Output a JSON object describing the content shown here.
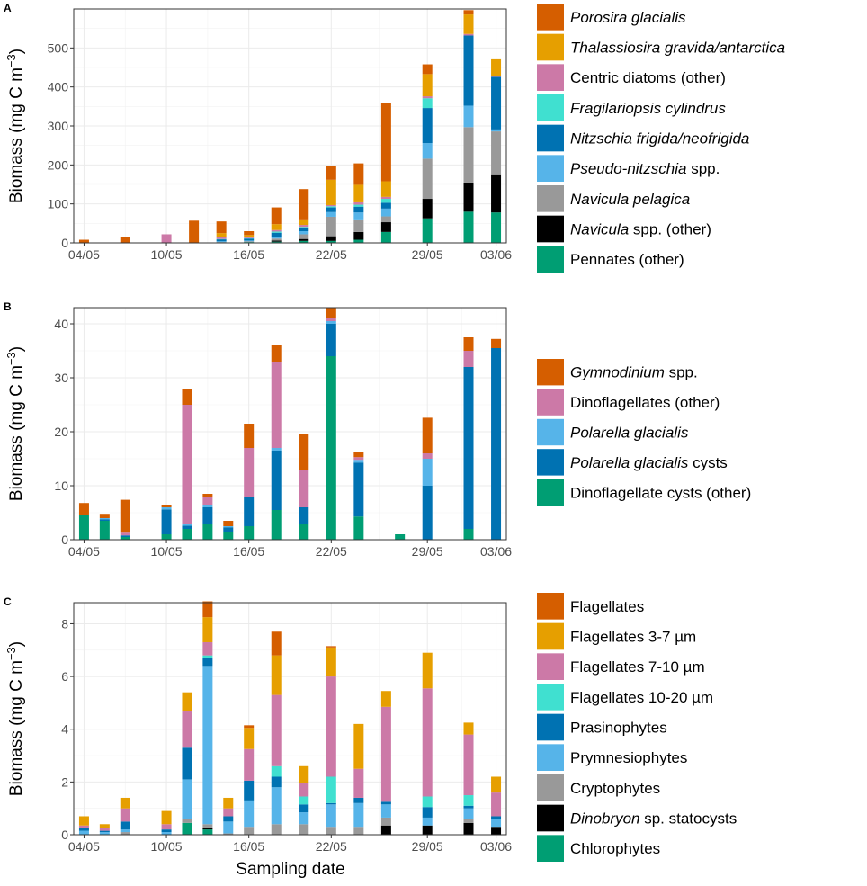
{
  "xlabel": "Sampling date",
  "x_ticks": [
    "04/05",
    "10/05",
    "16/05",
    "22/05",
    "29/05",
    "03/06"
  ],
  "colors": {
    "orange": "#D55E00",
    "gold": "#E69F00",
    "pink": "#CC79A7",
    "turquoise": "#40E0D0",
    "blue": "#0072B2",
    "skyblue": "#56B4E9",
    "grey": "#999999",
    "black": "#000000",
    "green": "#009E73"
  },
  "chart_data": [
    {
      "type": "bar",
      "stacked": true,
      "panel_label": "A",
      "ylabel": "Biomass (mg C m^-3)",
      "ylim": [
        0,
        600
      ],
      "y_ticks": [
        0,
        100,
        200,
        300,
        400,
        500
      ],
      "dates": [
        0,
        3,
        6,
        8,
        10,
        12,
        14,
        16,
        18,
        20,
        22,
        25,
        28,
        30
      ],
      "series": [
        {
          "name": "Pennates (other)",
          "color_key": "green",
          "values": [
            0,
            0,
            0,
            0,
            1,
            2,
            3,
            5,
            5,
            8,
            28,
            63,
            80,
            78
          ]
        },
        {
          "name": "Navicula spp. (other)",
          "color_key": "black",
          "values": [
            0,
            0,
            0,
            0,
            0,
            0,
            3,
            5,
            12,
            20,
            25,
            50,
            75,
            98
          ]
        },
        {
          "name": "Navicula pelagica",
          "color_key": "grey",
          "values": [
            0,
            0,
            0,
            0,
            1,
            2,
            5,
            12,
            50,
            30,
            15,
            103,
            142,
            110
          ]
        },
        {
          "name": "Pseudo-nitzschia spp.",
          "color_key": "skyblue",
          "values": [
            0,
            0,
            0,
            0,
            2,
            2,
            5,
            8,
            12,
            20,
            20,
            40,
            55,
            5
          ]
        },
        {
          "name": "Nitzschia frigida/neofrigida",
          "color_key": "blue",
          "values": [
            0,
            0,
            0,
            0,
            5,
            5,
            10,
            8,
            12,
            15,
            15,
            90,
            180,
            135
          ]
        },
        {
          "name": "Fragilariopsis cylindrus",
          "color_key": "turquoise",
          "values": [
            0,
            0,
            0,
            0,
            1,
            1,
            3,
            3,
            3,
            5,
            10,
            25,
            0,
            0
          ]
        },
        {
          "name": "Centric diatoms (other)",
          "color_key": "pink",
          "values": [
            0,
            0,
            22,
            0,
            5,
            3,
            4,
            5,
            3,
            6,
            5,
            5,
            4,
            3
          ]
        },
        {
          "name": "Thalassiosira gravida/antarctica",
          "color_key": "gold",
          "values": [
            0,
            0,
            0,
            0,
            10,
            5,
            15,
            12,
            65,
            45,
            40,
            57,
            50,
            42
          ]
        },
        {
          "name": "Porosira glacialis",
          "color_key": "orange",
          "values": [
            8,
            15,
            0,
            57,
            30,
            10,
            43,
            80,
            35,
            55,
            200,
            25,
            11,
            0
          ]
        }
      ]
    },
    {
      "type": "bar",
      "stacked": true,
      "panel_label": "B",
      "ylabel": "Biomass (mg C m^-3)",
      "ylim": [
        0,
        43
      ],
      "y_ticks": [
        0,
        10,
        20,
        30,
        40
      ],
      "dates": [
        0,
        1.5,
        3,
        6,
        7.5,
        9,
        10.5,
        12,
        14,
        16,
        18,
        20,
        23,
        25,
        28,
        30
      ],
      "series": [
        {
          "name": "Dinoflagellate cysts (other)",
          "color_key": "green",
          "values": [
            4.5,
            3.5,
            0.5,
            1,
            2,
            3,
            1.5,
            2.5,
            5.5,
            3,
            34,
            4.3,
            1,
            0,
            2,
            0
          ]
        },
        {
          "name": "Polarella glacialis cysts",
          "color_key": "blue",
          "values": [
            0,
            0.3,
            0.3,
            4.6,
            0.6,
            3,
            0.8,
            5.5,
            11,
            3,
            6,
            10,
            0,
            10,
            30,
            35.5
          ]
        },
        {
          "name": "Polarella glacialis",
          "color_key": "skyblue",
          "values": [
            0,
            0.2,
            0,
            0.4,
            0.4,
            0.5,
            0.2,
            0,
            0.5,
            0,
            0.5,
            0.5,
            0,
            5,
            0,
            0
          ]
        },
        {
          "name": "Dinoflagellates (other)",
          "color_key": "pink",
          "values": [
            0,
            0,
            0.5,
            0,
            22,
            1.5,
            0,
            9,
            16,
            7,
            0.5,
            0.5,
            0,
            1,
            3,
            0
          ]
        },
        {
          "name": "Gymnodinium spp.",
          "color_key": "orange",
          "values": [
            2.3,
            0.8,
            6.1,
            0.5,
            3,
            0.5,
            1,
            4.5,
            3,
            6.5,
            2,
            1,
            0,
            6.6,
            2.5,
            1.7
          ]
        }
      ]
    },
    {
      "type": "bar",
      "stacked": true,
      "panel_label": "C",
      "ylabel": "Biomass (mg C m^-3)",
      "ylim": [
        0,
        8.8
      ],
      "y_ticks": [
        0,
        2,
        4,
        6,
        8
      ],
      "dates": [
        0,
        1.5,
        3,
        6,
        7.5,
        9,
        10.5,
        12,
        14,
        16,
        18,
        20,
        22,
        25,
        28,
        30
      ],
      "series": [
        {
          "name": "Chlorophytes",
          "color_key": "green",
          "values": [
            0,
            0,
            0,
            0,
            0.45,
            0.2,
            0,
            0,
            0,
            0,
            0,
            0,
            0,
            0,
            0,
            0
          ]
        },
        {
          "name": "Dinobryon sp. statocysts",
          "color_key": "black",
          "values": [
            0,
            0,
            0,
            0,
            0,
            0.05,
            0,
            0,
            0,
            0,
            0,
            0,
            0.35,
            0.35,
            0.45,
            0.3
          ]
        },
        {
          "name": "Cryptophytes",
          "color_key": "grey",
          "values": [
            0,
            0,
            0.1,
            0,
            0.15,
            0.15,
            0.05,
            0.3,
            0.4,
            0.4,
            0.3,
            0.3,
            0.3,
            0,
            0.15,
            0
          ]
        },
        {
          "name": "Prymnesiophytes",
          "color_key": "skyblue",
          "values": [
            0.15,
            0.1,
            0.1,
            0.1,
            1.5,
            6,
            0.45,
            1,
            1.4,
            0.45,
            0.85,
            0.9,
            0.5,
            0.3,
            0.4,
            0.3
          ]
        },
        {
          "name": "Prasinophytes",
          "color_key": "blue",
          "values": [
            0.1,
            0.05,
            0.3,
            0.1,
            1.2,
            0.3,
            0.2,
            0.75,
            0.4,
            0.3,
            0.05,
            0.2,
            0.1,
            0.4,
            0.1,
            0.1
          ]
        },
        {
          "name": "Flagellates 10-20 µm",
          "color_key": "turquoise",
          "values": [
            0,
            0,
            0,
            0,
            0,
            0.1,
            0,
            0,
            0.4,
            0.3,
            1,
            0,
            0,
            0.4,
            0.4,
            0
          ]
        },
        {
          "name": "Flagellates 7-10 µm",
          "color_key": "pink",
          "values": [
            0.1,
            0.1,
            0.5,
            0.2,
            1.4,
            0.5,
            0.3,
            1.2,
            2.7,
            0.5,
            3.8,
            1.1,
            3.6,
            4.1,
            2.3,
            0.9
          ]
        },
        {
          "name": "Flagellates 3-7 µm",
          "color_key": "gold",
          "values": [
            0.35,
            0.15,
            0.4,
            0.5,
            0.7,
            0.95,
            0.4,
            0.8,
            1.5,
            0.65,
            1.1,
            1.7,
            0.6,
            1.35,
            0.45,
            0.6
          ]
        },
        {
          "name": "Flagellates",
          "color_key": "orange",
          "values": [
            0,
            0,
            0,
            0,
            0,
            0.6,
            0,
            0.1,
            0.9,
            0,
            0.05,
            0,
            0,
            0,
            0,
            0
          ]
        }
      ]
    }
  ],
  "legends": [
    [
      {
        "name": "Porosira glacialis",
        "italic": "Porosira glacialis",
        "plain": "",
        "color_key": "orange"
      },
      {
        "name": "Thalassiosira gravida/antarctica",
        "italic": "Thalassiosira gravida/antarctica",
        "plain": "",
        "color_key": "gold"
      },
      {
        "name": "Centric diatoms (other)",
        "italic": "",
        "plain": "Centric diatoms (other)",
        "color_key": "pink"
      },
      {
        "name": "Fragilariopsis cylindrus",
        "italic": "Fragilariopsis cylindrus",
        "plain": "",
        "color_key": "turquoise"
      },
      {
        "name": "Nitzschia frigida/neofrigida",
        "italic": "Nitzschia frigida/neofrigida",
        "plain": "",
        "color_key": "blue"
      },
      {
        "name": "Pseudo-nitzschia spp.",
        "italic": "Pseudo-nitzschia",
        "plain": " spp.",
        "color_key": "skyblue"
      },
      {
        "name": "Navicula pelagica",
        "italic": "Navicula pelagica",
        "plain": "",
        "color_key": "grey"
      },
      {
        "name": "Navicula spp. (other)",
        "italic": "Navicula",
        "plain": " spp. (other)",
        "color_key": "black"
      },
      {
        "name": "Pennates (other)",
        "italic": "",
        "plain": "Pennates (other)",
        "color_key": "green"
      }
    ],
    [
      {
        "name": "Gymnodinium spp.",
        "italic": "Gymnodinium",
        "plain": " spp.",
        "color_key": "orange"
      },
      {
        "name": "Dinoflagellates (other)",
        "italic": "",
        "plain": "Dinoflagellates (other)",
        "color_key": "pink"
      },
      {
        "name": "Polarella glacialis",
        "italic": "Polarella glacialis",
        "plain": "",
        "color_key": "skyblue"
      },
      {
        "name": "Polarella glacialis cysts",
        "italic": "Polarella glacialis",
        "plain": " cysts",
        "color_key": "blue"
      },
      {
        "name": "Dinoflagellate cysts (other)",
        "italic": "",
        "plain": "Dinoflagellate cysts (other)",
        "color_key": "green"
      }
    ],
    [
      {
        "name": "Flagellates",
        "italic": "",
        "plain": "Flagellates",
        "color_key": "orange"
      },
      {
        "name": "Flagellates 3-7 µm",
        "italic": "",
        "plain": "Flagellates 3-7 µm",
        "color_key": "gold"
      },
      {
        "name": "Flagellates 7-10 µm",
        "italic": "",
        "plain": "Flagellates 7-10 µm",
        "color_key": "pink"
      },
      {
        "name": "Flagellates 10-20 µm",
        "italic": "",
        "plain": "Flagellates 10-20 µm",
        "color_key": "turquoise"
      },
      {
        "name": "Prasinophytes",
        "italic": "",
        "plain": "Prasinophytes",
        "color_key": "blue"
      },
      {
        "name": "Prymnesiophytes",
        "italic": "",
        "plain": "Prymnesiophytes",
        "color_key": "skyblue"
      },
      {
        "name": "Cryptophytes",
        "italic": "",
        "plain": "Cryptophytes",
        "color_key": "grey"
      },
      {
        "name": "Dinobryon sp. statocysts",
        "italic": "Dinobryon",
        "plain": " sp. statocysts",
        "color_key": "black"
      },
      {
        "name": "Chlorophytes",
        "italic": "",
        "plain": "Chlorophytes",
        "color_key": "green"
      }
    ]
  ]
}
